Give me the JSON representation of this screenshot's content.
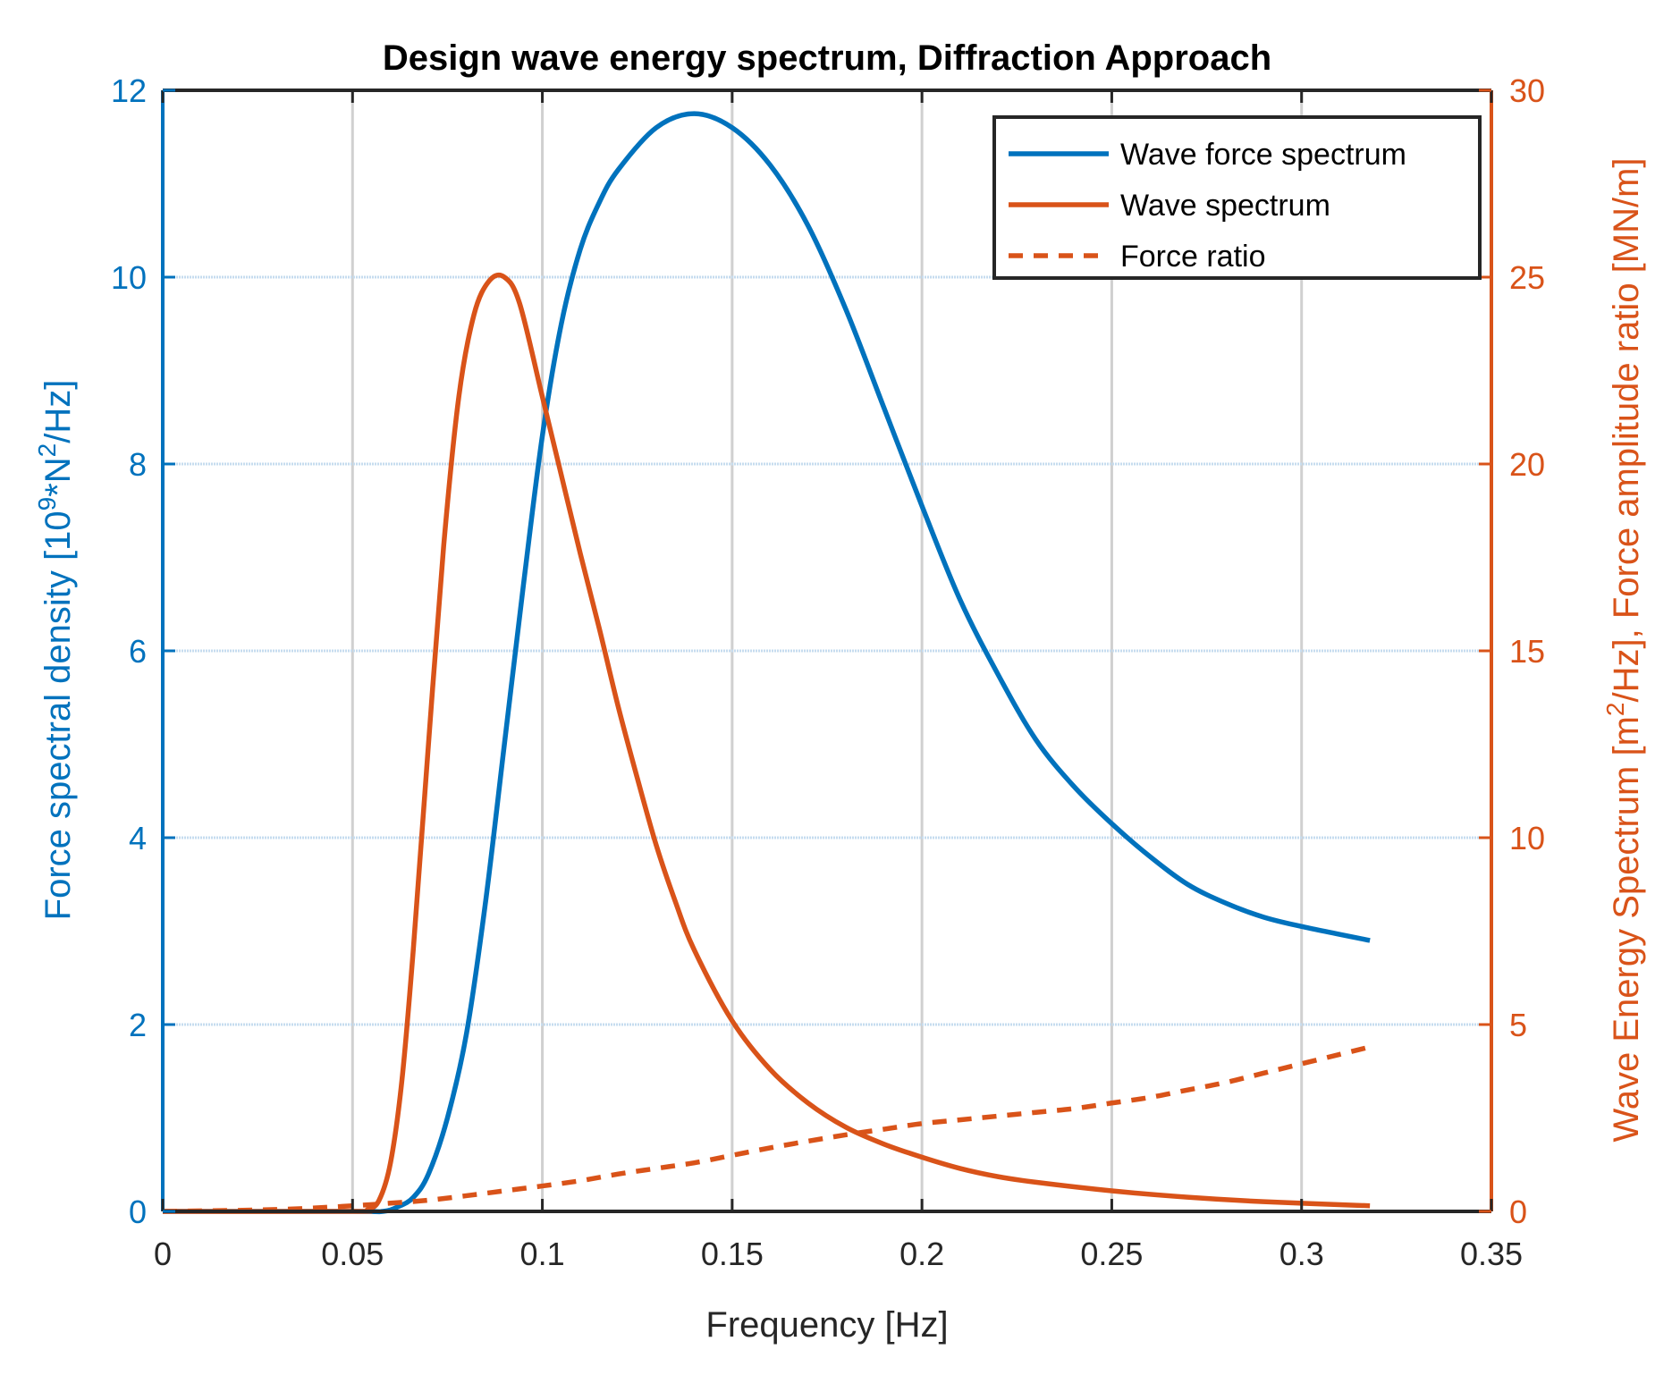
{
  "chart_data": {
    "type": "line",
    "title": "Design wave energy spectrum, Diffraction Approach",
    "xlabel": "Frequency [Hz]",
    "ylabel_parts": [
      "Force spectral density [10",
      "9",
      "*N",
      "2",
      "/Hz]"
    ],
    "y2label_parts": [
      "Wave Energy Spectrum [m",
      "2",
      "/Hz], Force amplitude ratio [MN/m]"
    ],
    "xlim": [
      0,
      0.35
    ],
    "ylim": [
      0,
      12
    ],
    "y2lim": [
      0,
      30
    ],
    "xticks": [
      "0",
      "0.05",
      "0.1",
      "0.15",
      "0.2",
      "0.25",
      "0.3",
      "0.35"
    ],
    "yticks": [
      "0",
      "2",
      "4",
      "6",
      "8",
      "10",
      "12"
    ],
    "y2ticks": [
      "0",
      "5",
      "10",
      "15",
      "20",
      "25",
      "30"
    ],
    "grid": true,
    "legend_position": "top-right",
    "colors": {
      "left_axis": "#0072BD",
      "right_axis": "#D95319",
      "axis": "#262626"
    },
    "series": [
      {
        "name": "Wave force spectrum",
        "axis": "left",
        "style": "solid",
        "color": "#0072BD",
        "x": [
          0,
          0.05,
          0.058,
          0.062,
          0.066,
          0.07,
          0.075,
          0.08,
          0.085,
          0.09,
          0.095,
          0.1,
          0.105,
          0.11,
          0.115,
          0.12,
          0.13,
          0.14,
          0.15,
          0.16,
          0.17,
          0.18,
          0.19,
          0.2,
          0.21,
          0.22,
          0.23,
          0.24,
          0.25,
          0.26,
          0.27,
          0.28,
          0.29,
          0.3,
          0.318
        ],
        "y": [
          0,
          0,
          0,
          0.05,
          0.15,
          0.4,
          1.0,
          1.9,
          3.3,
          5.0,
          6.7,
          8.3,
          9.5,
          10.3,
          10.8,
          11.15,
          11.6,
          11.75,
          11.6,
          11.2,
          10.55,
          9.65,
          8.6,
          7.55,
          6.55,
          5.75,
          5.05,
          4.55,
          4.15,
          3.8,
          3.5,
          3.3,
          3.15,
          3.05,
          2.9
        ]
      },
      {
        "name": "Wave spectrum",
        "axis": "right",
        "style": "solid",
        "color": "#D95319",
        "x": [
          0,
          0.05,
          0.054,
          0.057,
          0.06,
          0.063,
          0.066,
          0.07,
          0.074,
          0.078,
          0.082,
          0.086,
          0.09,
          0.094,
          0.1,
          0.105,
          0.11,
          0.115,
          0.12,
          0.125,
          0.13,
          0.135,
          0.14,
          0.15,
          0.16,
          0.17,
          0.18,
          0.19,
          0.2,
          0.21,
          0.22,
          0.23,
          0.25,
          0.27,
          0.29,
          0.318
        ],
        "y": [
          0,
          0,
          0.05,
          0.3,
          1.3,
          3.5,
          7.0,
          12.5,
          17.8,
          21.8,
          24.0,
          24.9,
          25.0,
          24.3,
          21.8,
          19.7,
          17.6,
          15.6,
          13.5,
          11.6,
          9.8,
          8.3,
          7.0,
          5.1,
          3.8,
          2.9,
          2.25,
          1.8,
          1.45,
          1.15,
          0.93,
          0.78,
          0.55,
          0.38,
          0.26,
          0.15
        ]
      },
      {
        "name": "Force ratio",
        "axis": "right",
        "style": "dashed",
        "color": "#D95319",
        "x": [
          0,
          0.03,
          0.05,
          0.06,
          0.07,
          0.08,
          0.09,
          0.1,
          0.11,
          0.12,
          0.13,
          0.14,
          0.15,
          0.16,
          0.17,
          0.18,
          0.19,
          0.2,
          0.21,
          0.22,
          0.23,
          0.24,
          0.25,
          0.26,
          0.27,
          0.28,
          0.29,
          0.3,
          0.31,
          0.318
        ],
        "y": [
          0,
          0.05,
          0.15,
          0.22,
          0.3,
          0.42,
          0.55,
          0.68,
          0.82,
          1.0,
          1.15,
          1.3,
          1.5,
          1.7,
          1.88,
          2.05,
          2.2,
          2.35,
          2.45,
          2.55,
          2.65,
          2.75,
          2.9,
          3.05,
          3.25,
          3.45,
          3.7,
          3.95,
          4.2,
          4.4
        ]
      }
    ]
  }
}
